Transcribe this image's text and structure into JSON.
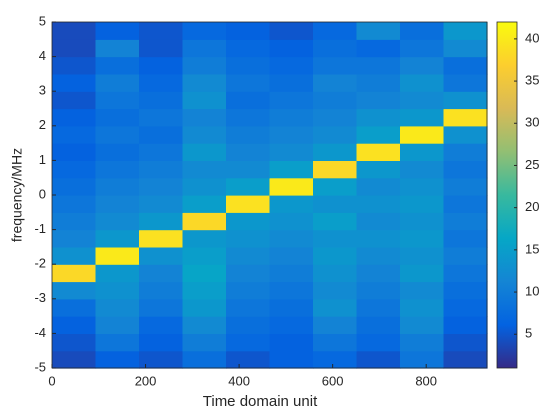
{
  "chart_data": {
    "type": "heatmap",
    "x_label": "Time domain unit",
    "y_label": "frequency/MHz",
    "xlim": [
      0,
      930
    ],
    "xticks": [
      0,
      200,
      400,
      600,
      800
    ],
    "ylim": [
      -5,
      5
    ],
    "yticks": [
      -5,
      -4,
      -3,
      -2,
      -1,
      0,
      1,
      2,
      3,
      4,
      5
    ],
    "zlim": [
      1,
      42
    ],
    "zticks": [
      5,
      10,
      15,
      20,
      25,
      30,
      35,
      40
    ],
    "colormap": [
      "#352a87",
      "#0363e1",
      "#1485d4",
      "#06a7c6",
      "#38b99e",
      "#92bf73",
      "#d9ba56",
      "#fcce2e",
      "#f9fb0e"
    ],
    "z": [
      [
        4,
        6,
        5,
        8,
        5,
        6,
        7,
        5,
        9,
        4
      ],
      [
        5,
        9,
        6,
        10,
        7,
        6,
        9,
        7,
        10,
        5
      ],
      [
        6,
        11,
        7,
        12,
        8,
        7,
        11,
        8,
        12,
        6
      ],
      [
        8,
        12,
        9,
        14,
        9,
        8,
        13,
        9,
        13,
        7
      ],
      [
        12,
        13,
        10,
        15,
        10,
        9,
        12,
        10,
        12,
        8
      ],
      [
        38,
        14,
        11,
        16,
        11,
        10,
        13,
        11,
        14,
        9
      ],
      [
        13,
        40,
        13,
        15,
        12,
        11,
        14,
        12,
        13,
        10
      ],
      [
        11,
        14,
        39,
        14,
        13,
        12,
        13,
        13,
        14,
        9
      ],
      [
        10,
        12,
        14,
        38,
        14,
        13,
        15,
        12,
        13,
        10
      ],
      [
        9,
        11,
        12,
        15,
        39,
        14,
        13,
        13,
        14,
        9
      ],
      [
        8,
        10,
        11,
        13,
        15,
        40,
        15,
        12,
        13,
        10
      ],
      [
        7,
        9,
        10,
        12,
        12,
        15,
        38,
        14,
        12,
        9
      ],
      [
        6,
        8,
        9,
        14,
        11,
        12,
        14,
        39,
        14,
        10
      ],
      [
        7,
        9,
        8,
        12,
        10,
        11,
        12,
        15,
        40,
        13
      ],
      [
        6,
        8,
        9,
        11,
        9,
        10,
        11,
        13,
        14,
        39
      ],
      [
        5,
        9,
        8,
        13,
        8,
        9,
        10,
        11,
        12,
        13
      ],
      [
        6,
        10,
        7,
        12,
        9,
        8,
        11,
        10,
        13,
        9
      ],
      [
        5,
        8,
        6,
        10,
        8,
        7,
        9,
        9,
        11,
        8
      ],
      [
        4,
        11,
        5,
        9,
        7,
        6,
        8,
        7,
        9,
        12
      ],
      [
        4,
        6,
        5,
        7,
        6,
        5,
        7,
        12,
        8,
        14
      ]
    ]
  }
}
